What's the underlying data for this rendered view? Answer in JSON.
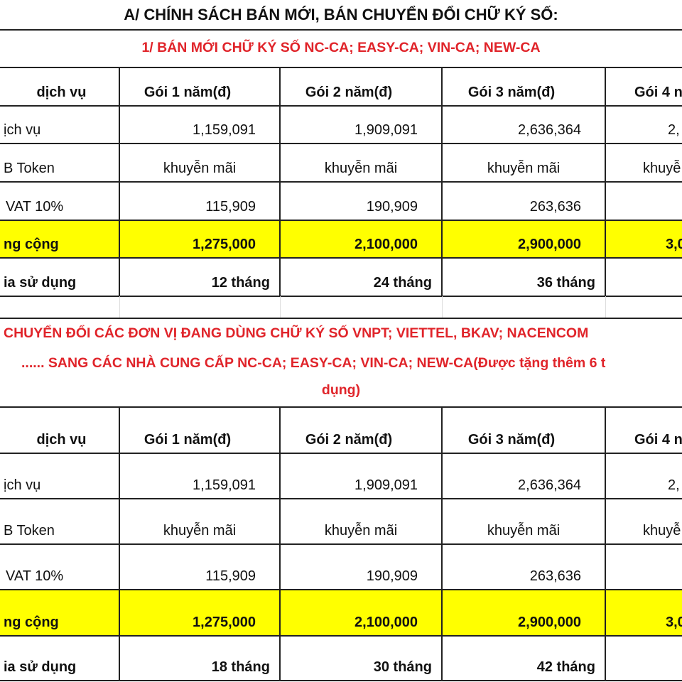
{
  "title": "A/ CHÍNH SÁCH BÁN MỚI, BÁN CHUYỂN ĐỔI CHỮ KÝ SỐ:",
  "colors": {
    "red_text": "#e0242a",
    "highlight": "#ffff00"
  },
  "sections": [
    {
      "heading_lines": [
        "1/ BÁN MỚI CHỮ KÝ SỐ NC-CA; EASY-CA; VIN-CA; NEW-CA"
      ],
      "table": {
        "header": [
          "dịch vụ",
          "Gói 1 năm(đ)",
          "Gói 2 năm(đ)",
          "Gói 3 năm(đ)",
          "Gói 4 n"
        ],
        "rows": [
          {
            "cells": [
              "ịch vụ",
              "1,159,091",
              "1,909,091",
              "2,636,364",
              "2,"
            ]
          },
          {
            "cells": [
              "B Token",
              "khuyễn mãi",
              "khuyễn mãi",
              "khuyễn mãi",
              "khuyễ"
            ]
          },
          {
            "cells": [
              "VAT 10%",
              "115,909",
              "190,909",
              "263,636",
              ""
            ]
          },
          {
            "cells": [
              "ng cộng",
              "1,275,000",
              "2,100,000",
              "2,900,000",
              "3,0"
            ],
            "highlight": true
          },
          {
            "cells": [
              "ia sử dụng",
              "12 tháng",
              "24 tháng",
              "36 tháng",
              ""
            ]
          }
        ]
      }
    },
    {
      "heading_lines": [
        "CHUYỂN ĐỔI CÁC ĐƠN VỊ ĐANG DÙNG CHỮ KÝ SỐ VNPT; VIETTEL, BKAV; NACENCOM",
        "...... SANG CÁC NHÀ CUNG CẤP NC-CA; EASY-CA; VIN-CA; NEW-CA(Được tặng thêm 6 t",
        "dụng)"
      ],
      "table": {
        "header": [
          "dịch vụ",
          "Gói 1 năm(đ)",
          "Gói 2 năm(đ)",
          "Gói 3 năm(đ)",
          "Gói 4 n"
        ],
        "rows": [
          {
            "cells": [
              "ịch vụ",
              "1,159,091",
              "1,909,091",
              "2,636,364",
              "2,"
            ]
          },
          {
            "cells": [
              "B Token",
              "khuyễn mãi",
              "khuyễn mãi",
              "khuyễn mãi",
              "khuyễ"
            ]
          },
          {
            "cells": [
              "VAT 10%",
              "115,909",
              "190,909",
              "263,636",
              ""
            ]
          },
          {
            "cells": [
              "ng cộng",
              "1,275,000",
              "2,100,000",
              "2,900,000",
              "3,0"
            ],
            "highlight": true
          },
          {
            "cells": [
              "ia sử dụng",
              "18 tháng",
              "30 tháng",
              "42 tháng",
              ""
            ]
          }
        ]
      }
    }
  ]
}
